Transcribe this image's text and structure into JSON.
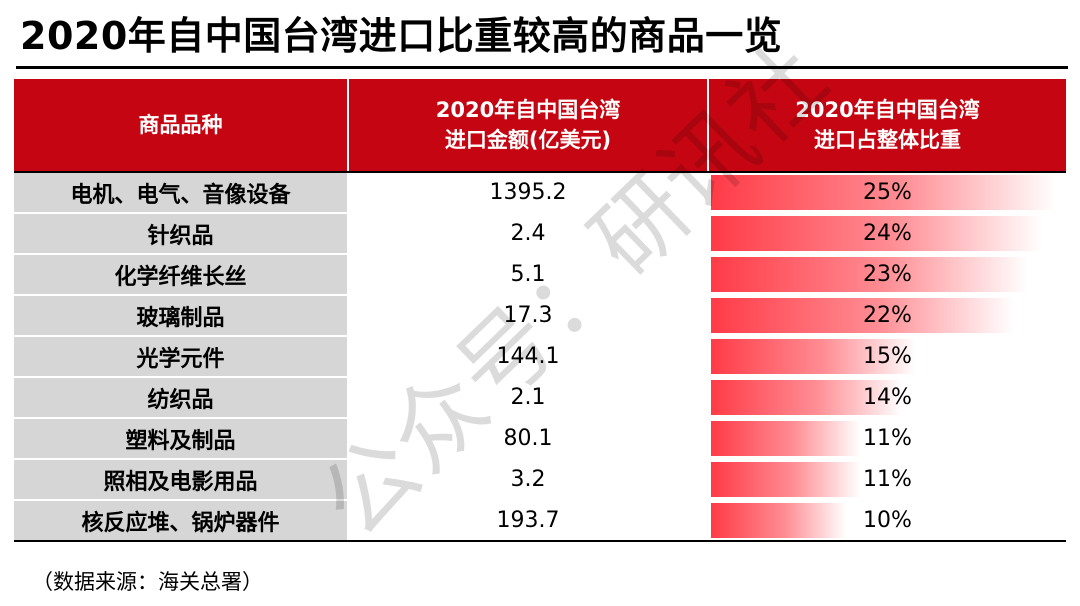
{
  "title": "2020年自中国台湾进口比重较高的商品一览",
  "headers": {
    "col1": "商品品种",
    "col2_line1": "2020年自中国台湾",
    "col2_line2": "进口金额(亿美元)",
    "col3_line1": "2020年自中国台湾",
    "col3_line2": "进口占整体比重"
  },
  "rows": [
    {
      "name": "电机、电气、音像设备",
      "amount": "1395.2",
      "share": "25%",
      "share_value": 25
    },
    {
      "name": "针织品",
      "amount": "2.4",
      "share": "24%",
      "share_value": 24
    },
    {
      "name": "化学纤维长丝",
      "amount": "5.1",
      "share": "23%",
      "share_value": 23
    },
    {
      "name": "玻璃制品",
      "amount": "17.3",
      "share": "22%",
      "share_value": 22
    },
    {
      "name": "光学元件",
      "amount": "144.1",
      "share": "15%",
      "share_value": 15
    },
    {
      "name": "纺织品",
      "amount": "2.1",
      "share": "14%",
      "share_value": 14
    },
    {
      "name": "塑料及制品",
      "amount": "80.1",
      "share": "11%",
      "share_value": 11
    },
    {
      "name": "照相及电影用品",
      "amount": "3.2",
      "share": "11%",
      "share_value": 11
    },
    {
      "name": "核反应堆、锅炉器件",
      "amount": "193.7",
      "share": "10%",
      "share_value": 10
    }
  ],
  "source": "（数据来源：海关总署）",
  "watermark": "公众号：研讯社",
  "colors": {
    "header_bg": "#c50612",
    "bar": "#ff3b47",
    "name_bg": "#d6d6d6"
  }
}
